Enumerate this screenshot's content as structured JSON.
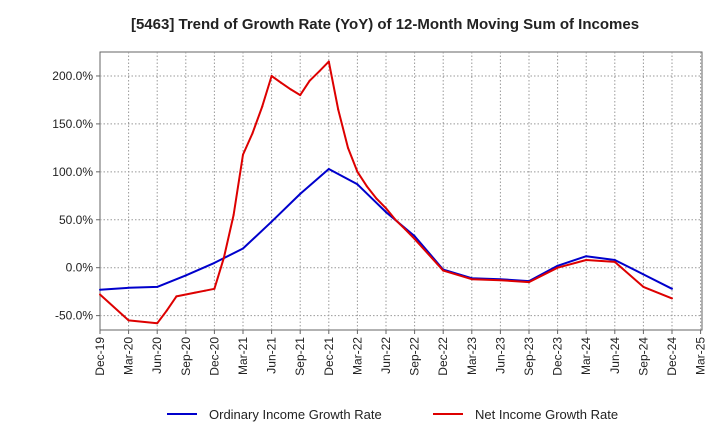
{
  "chart_data": {
    "type": "line",
    "title": "[5463]  Trend of Growth Rate (YoY) of 12-Month Moving Sum of Incomes",
    "xlabel": "",
    "ylabel": "",
    "x_tick_labels": [
      "Dec-19",
      "Mar-20",
      "Jun-20",
      "Sep-20",
      "Dec-20",
      "Mar-21",
      "Jun-21",
      "Sep-21",
      "Dec-21",
      "Mar-22",
      "Jun-22",
      "Sep-22",
      "Dec-22",
      "Mar-23",
      "Jun-23",
      "Sep-23",
      "Dec-23",
      "Mar-24",
      "Jun-24",
      "Sep-24",
      "Dec-24",
      "Mar-25"
    ],
    "y_ticks": [
      -50,
      0,
      50,
      100,
      150,
      200
    ],
    "y_tick_labels": [
      "-50.0%",
      "0.0%",
      "50.0%",
      "100.0%",
      "150.0%",
      "200.0%"
    ],
    "ylim": [
      -65,
      225
    ],
    "grid": true,
    "legend_position": "bottom",
    "series": [
      {
        "name": "Ordinary Income Growth Rate",
        "color": "#0000cc",
        "x": [
          0,
          1,
          2,
          3,
          4,
          5,
          6,
          7,
          8,
          9,
          10,
          11,
          12,
          13,
          14,
          15,
          16,
          17,
          18,
          19,
          20
        ],
        "y": [
          -23,
          -21,
          -20,
          -8,
          5,
          20,
          48,
          77,
          103,
          87,
          58,
          33,
          -2,
          -11,
          -12,
          -14,
          2,
          12,
          8,
          -7,
          -22
        ]
      },
      {
        "name": "Net Income Growth Rate",
        "color": "#dd0000",
        "x": [
          0,
          1,
          2,
          2.33,
          2.67,
          3,
          3.33,
          3.67,
          4,
          4.33,
          4.67,
          5,
          5.33,
          5.67,
          6,
          6.33,
          6.67,
          7,
          7.33,
          7.67,
          8,
          8.33,
          8.67,
          9,
          9.33,
          9.67,
          10,
          10.33,
          10.67,
          11,
          12,
          13,
          14,
          15,
          16,
          17,
          18,
          19,
          20
        ],
        "y": [
          -28,
          -55,
          -58,
          -45,
          -30,
          -28,
          -26,
          -24,
          -22,
          10,
          55,
          118,
          140,
          168,
          200,
          193,
          186,
          180,
          195,
          205,
          215,
          165,
          125,
          100,
          85,
          72,
          62,
          50,
          40,
          30,
          -3,
          -12,
          -13,
          -15,
          0,
          8,
          6,
          -20,
          -32
        ]
      }
    ]
  }
}
